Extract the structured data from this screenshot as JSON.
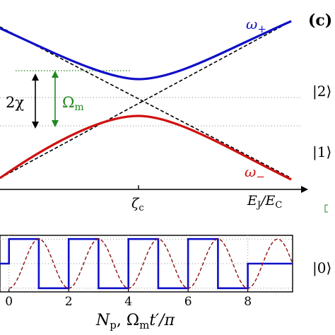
{
  "top_panel": {
    "curve_upper_label": "ω",
    "curve_upper_sub": "+",
    "curve_lower_label": "ω",
    "curve_lower_sub": "−",
    "gap_label": "2χ",
    "omega_label": "Ω",
    "omega_sub": "m",
    "zeta_label": "ζ",
    "zeta_sub": "c",
    "x_axis_label": "E",
    "x_axis_sub1": "J",
    "x_axis_sep": "/E",
    "x_axis_sub2": "C",
    "colors": {
      "upper": "#1010c8",
      "lower": "#d01010",
      "omega": "#1e8a1e",
      "dashed": "#000000"
    }
  },
  "side_panel": {
    "panel_label": "(c)",
    "state2": "|2⟩",
    "state1": "|1⟩",
    "state0": "|0⟩"
  },
  "bottom_panel": {
    "x_ticks": [
      "0",
      "2",
      "4",
      "6",
      "8"
    ],
    "x_label_main": "N",
    "x_label_sub": "p",
    "x_label_sep": ", Ω",
    "x_label_sub2": "m",
    "x_label_end": "t′/π",
    "chart_data": {
      "type": "line",
      "xlim": [
        -0.3,
        9.5
      ],
      "ylim": [
        -1.15,
        1.15
      ],
      "series": [
        {
          "style": "square-wave",
          "color": "#1010c8",
          "x": [
            -0.3,
            0,
            0,
            1,
            1,
            2,
            2,
            3,
            3,
            4,
            4,
            5,
            5,
            6,
            6,
            7,
            7,
            8,
            8,
            9.5
          ],
          "y": [
            0,
            0,
            1,
            1,
            -1,
            -1,
            1,
            1,
            -1,
            -1,
            1,
            1,
            -1,
            -1,
            1,
            1,
            -1,
            -1,
            0,
            0
          ]
        },
        {
          "style": "dashed-cosine",
          "color": "#8b1010",
          "function": "-cos(pi*x)",
          "x_range": [
            0,
            9.5
          ]
        }
      ],
      "grid": "dotted"
    }
  }
}
